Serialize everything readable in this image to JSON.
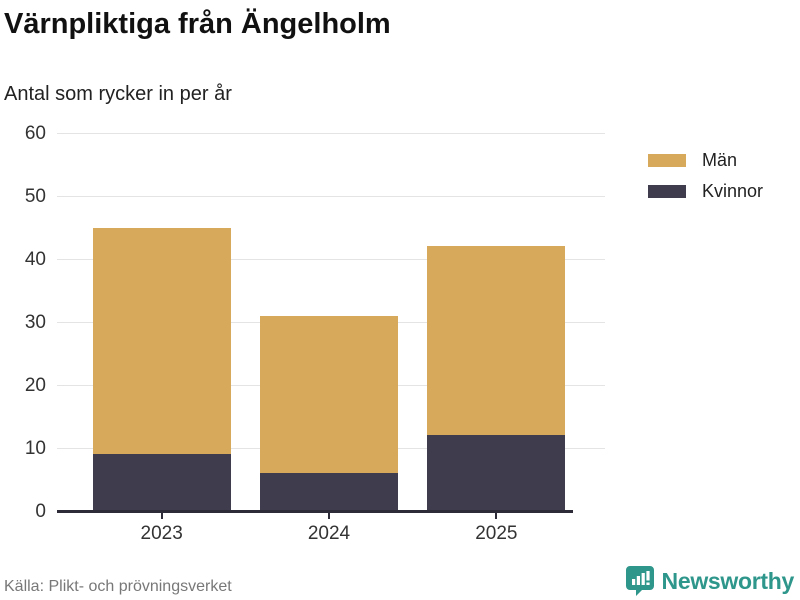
{
  "header": {
    "title": "Värnpliktiga från Ängelholm",
    "subtitle": "Antal som rycker in per år"
  },
  "chart_data": {
    "type": "bar",
    "stacked": true,
    "title": "Värnpliktiga från Ängelholm",
    "subtitle": "Antal som rycker in per år",
    "categories": [
      "2023",
      "2024",
      "2025"
    ],
    "series": [
      {
        "name": "Män",
        "color": "#d7a95a",
        "values": [
          36,
          25,
          30
        ]
      },
      {
        "name": "Kvinnor",
        "color": "#3f3c4d",
        "values": [
          9,
          6,
          12
        ]
      }
    ],
    "stack_bottom_series": "Kvinnor",
    "totals": [
      45,
      31,
      42
    ],
    "xlabel": "",
    "ylabel": "",
    "ylim": [
      0,
      60
    ],
    "yticks": [
      0,
      10,
      20,
      30,
      40,
      50,
      60
    ],
    "grid": true,
    "legend_position": "top-right"
  },
  "colors": {
    "grid": "#e4e4e4",
    "axis": "#2e2b38",
    "tick_text": "#333333",
    "title_text": "#111111",
    "muted_text": "#787878",
    "brand_teal": "#2e968b"
  },
  "footer": {
    "source": "Källa: Plikt- och prövningsverket",
    "brand": "Newsworthy",
    "brand_icon": "bar-chart-speech-bubble-icon"
  }
}
